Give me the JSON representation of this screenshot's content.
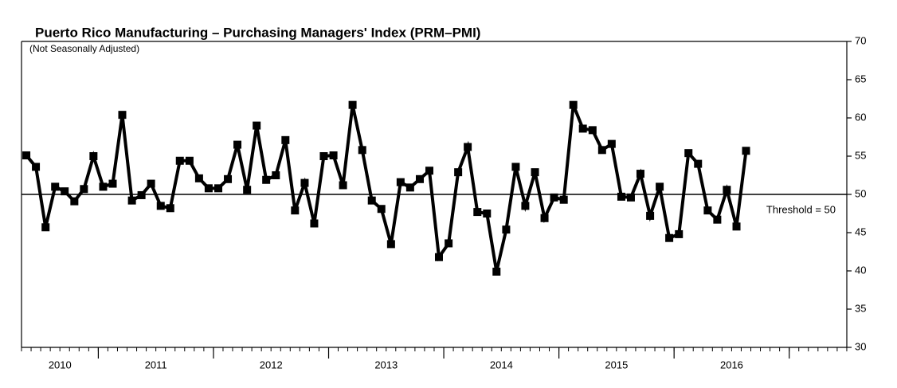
{
  "chart_data": {
    "type": "line",
    "title": "Puerto Rico Manufacturing – Purchasing Managers' Index (PRM–PMI)",
    "subtitle": "(Not Seasonally Adjusted)",
    "x": [
      2010.375,
      2010.458,
      2010.542,
      2010.625,
      2010.708,
      2010.792,
      2010.875,
      2010.958,
      2011.042,
      2011.125,
      2011.208,
      2011.292,
      2011.375,
      2011.458,
      2011.542,
      2011.625,
      2011.708,
      2011.792,
      2011.875,
      2011.958,
      2012.042,
      2012.125,
      2012.208,
      2012.292,
      2012.375,
      2012.458,
      2012.542,
      2012.625,
      2012.708,
      2012.792,
      2012.875,
      2012.958,
      2013.042,
      2013.125,
      2013.208,
      2013.292,
      2013.375,
      2013.458,
      2013.542,
      2013.625,
      2013.708,
      2013.792,
      2013.875,
      2013.958,
      2014.042,
      2014.125,
      2014.208,
      2014.292,
      2014.375,
      2014.458,
      2014.542,
      2014.625,
      2014.708,
      2014.792,
      2014.875,
      2014.958,
      2015.042,
      2015.125,
      2015.208,
      2015.292,
      2015.375,
      2015.458,
      2015.542,
      2015.625,
      2015.708,
      2015.792,
      2015.875,
      2015.958,
      2016.042,
      2016.125,
      2016.208,
      2016.292,
      2016.375,
      2016.458,
      2016.542,
      2016.625
    ],
    "series": [
      {
        "name": "PRM-PMI",
        "color": "#000000",
        "values": [
          55.1,
          53.6,
          45.7,
          51.0,
          50.4,
          49.1,
          50.7,
          55.0,
          51.0,
          51.4,
          60.4,
          49.2,
          49.9,
          51.4,
          48.5,
          48.2,
          54.4,
          54.4,
          52.1,
          50.8,
          50.8,
          52.0,
          56.5,
          50.6,
          59.0,
          51.9,
          52.5,
          57.1,
          47.9,
          51.5,
          46.2,
          55.0,
          55.1,
          51.2,
          61.7,
          55.8,
          49.2,
          48.1,
          43.5,
          51.6,
          50.9,
          52.0,
          53.1,
          41.8,
          43.6,
          52.9,
          56.2,
          47.7,
          47.5,
          39.9,
          45.4,
          53.6,
          48.5,
          52.9,
          46.9,
          49.6,
          49.3,
          61.7,
          58.6,
          58.4,
          55.8,
          56.6,
          49.7,
          49.6,
          52.7,
          47.2,
          51.0,
          44.3,
          44.8,
          55.4,
          54.0,
          47.9,
          46.7,
          50.6,
          45.8,
          55.7
        ]
      }
    ],
    "xlim": [
      2010.333,
      2017.5
    ],
    "xticks": [
      2011,
      2012,
      2013,
      2014,
      2015,
      2016,
      2017
    ],
    "xtick_labels": [
      {
        "value": 2010.667,
        "label": "2010"
      },
      {
        "value": 2011.5,
        "label": "2011"
      },
      {
        "value": 2012.5,
        "label": "2012"
      },
      {
        "value": 2013.5,
        "label": "2013"
      },
      {
        "value": 2014.5,
        "label": "2014"
      },
      {
        "value": 2015.5,
        "label": "2015"
      },
      {
        "value": 2016.5,
        "label": "2016"
      }
    ],
    "ylim": [
      30,
      70
    ],
    "yticks": [
      30,
      35,
      40,
      45,
      50,
      55,
      60,
      65,
      70
    ],
    "threshold": {
      "value": 50,
      "label": "Threshold = 50"
    }
  }
}
